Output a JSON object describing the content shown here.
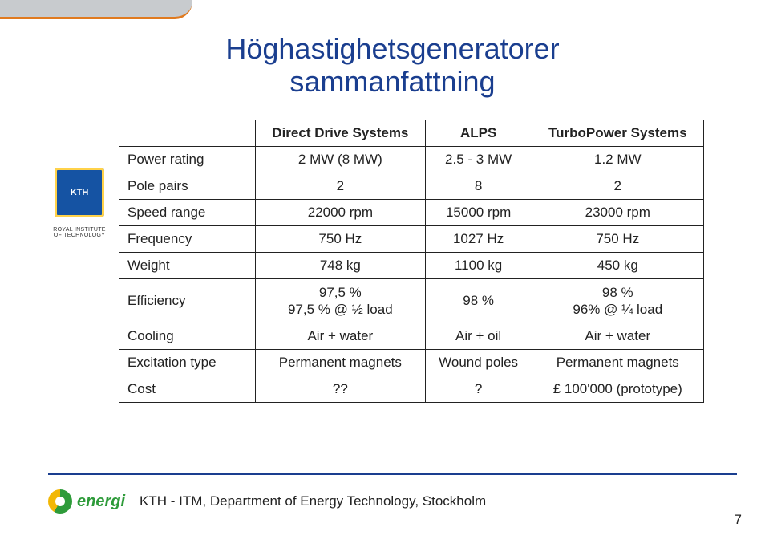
{
  "title_line1": "Höghastighetsgeneratorer",
  "title_line2": "sammanfattning",
  "table": {
    "headers": [
      "Direct Drive Systems",
      "ALPS",
      "TurboPower Systems"
    ],
    "row_labels": [
      "Power rating",
      "Pole pairs",
      "Speed range",
      "Frequency",
      "Weight",
      "Efficiency",
      "Cooling",
      "Excitation type",
      "Cost"
    ],
    "cells": {
      "power_rating": [
        "2 MW (8 MW)",
        "2.5 - 3 MW",
        "1.2 MW"
      ],
      "pole_pairs": [
        "2",
        "8",
        "2"
      ],
      "speed_range": [
        "22000 rpm",
        "15000 rpm",
        "23000 rpm"
      ],
      "frequency": [
        "750 Hz",
        "1027 Hz",
        "750 Hz"
      ],
      "weight": [
        "748 kg",
        "1100 kg",
        "450 kg"
      ],
      "efficiency_col1a": "97,5 %",
      "efficiency_col1b": "97,5 % @ ½ load",
      "efficiency_col2": "98 %",
      "efficiency_col3a": "98 %",
      "efficiency_col3b": "96% @ ¼ load",
      "cooling": [
        "Air + water",
        "Air + oil",
        "Air + water"
      ],
      "excitation": [
        "Permanent magnets",
        "Wound poles",
        "Permanent magnets"
      ],
      "cost": [
        "??",
        "?",
        "£ 100'000 (prototype)"
      ]
    },
    "border_color": "#222222",
    "header_weight": 700,
    "font_size": 17
  },
  "logo_kth_text": "KTH",
  "logo_royal_line1": "ROYAL INSTITUTE",
  "logo_royal_line2": "OF TECHNOLOGY",
  "energi_label": "energi",
  "footer_dept": "KTH - ITM, Department of Energy Technology, Stockholm",
  "page_number": "7",
  "colors": {
    "title": "#1a3e8f",
    "rule": "#1a3e8f",
    "topband": "#c8cbce",
    "topband_border": "#e07a1f",
    "energi_green": "#2e9b3a",
    "energi_yellow": "#f2b705",
    "kth_blue": "#1553a3",
    "kth_gold": "#ffd24a",
    "text": "#222222",
    "background": "#ffffff"
  }
}
